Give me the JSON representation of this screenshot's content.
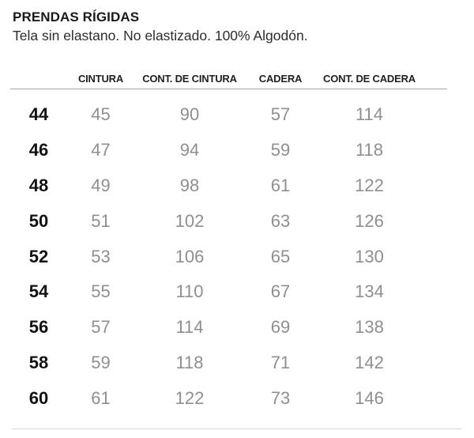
{
  "header": {
    "title": "PRENDAS RÍGIDAS",
    "subtitle": "Tela sin elastano. No elastizado. 100% Algodón."
  },
  "table": {
    "size_column_header": "",
    "columns": [
      "CINTURA",
      "CONT. DE CINTURA",
      "CADERA",
      "CONT. DE CADERA"
    ],
    "rows": [
      [
        "44",
        "45",
        "90",
        "57",
        "114"
      ],
      [
        "46",
        "47",
        "94",
        "59",
        "118"
      ],
      [
        "48",
        "49",
        "98",
        "61",
        "122"
      ],
      [
        "50",
        "51",
        "102",
        "63",
        "126"
      ],
      [
        "52",
        "53",
        "106",
        "65",
        "130"
      ],
      [
        "54",
        "55",
        "110",
        "67",
        "134"
      ],
      [
        "56",
        "57",
        "114",
        "69",
        "138"
      ],
      [
        "58",
        "59",
        "118",
        "71",
        "142"
      ],
      [
        "60",
        "61",
        "122",
        "73",
        "146"
      ]
    ]
  },
  "colors": {
    "title_text": "#1a1a1a",
    "value_text": "#8f8f8f",
    "header_rule": "#a6a6a6",
    "bottom_rule": "#d6d6d6",
    "background": "#ffffff"
  }
}
